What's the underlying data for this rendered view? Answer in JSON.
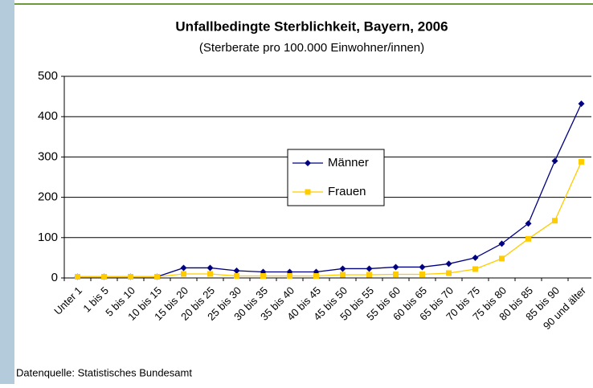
{
  "chart_data": {
    "type": "line",
    "title": "Unfallbedingte Sterblichkeit, Bayern, 2006",
    "subtitle": "(Sterberate pro 100.000 Einwohner/innen)",
    "source": "Datenquelle: Statistisches Bundesamt",
    "categories": [
      "Unter 1",
      "1 bis 5",
      "5 bis 10",
      "10 bis 15",
      "15 bis 20",
      "20 bis 25",
      "25 bis 30",
      "30 bis 35",
      "35 bis 40",
      "40 bis 45",
      "45 bis 50",
      "50 bis 55",
      "55 bis 60",
      "60 bis 65",
      "65 bis 70",
      "70 bis 75",
      "75 bis 80",
      "80 bis 85",
      "85 bis 90",
      "90 und älter"
    ],
    "series": [
      {
        "name": "Männer",
        "color": "#000080",
        "marker": "diamond",
        "values": [
          3,
          3,
          3,
          3,
          25,
          25,
          18,
          15,
          15,
          15,
          23,
          23,
          27,
          27,
          35,
          50,
          85,
          135,
          290,
          432
        ]
      },
      {
        "name": "Frauen",
        "color": "#ffcc00",
        "marker": "square",
        "values": [
          3,
          3,
          3,
          3,
          10,
          10,
          5,
          5,
          5,
          5,
          8,
          8,
          9,
          9,
          12,
          22,
          48,
          97,
          142,
          288
        ]
      }
    ],
    "ylim": [
      0,
      500
    ],
    "yticks": [
      0,
      100,
      200,
      300,
      400,
      500
    ],
    "grid": true,
    "legend": "center"
  }
}
